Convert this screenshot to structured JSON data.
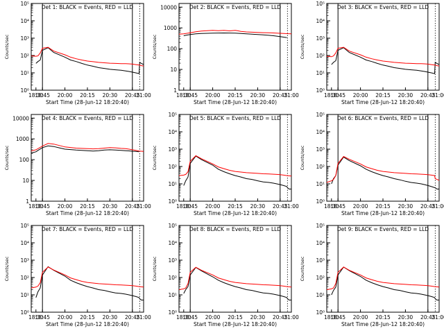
{
  "colors": {
    "events": "#000000",
    "lld": "#ff0000",
    "axis": "#000000"
  },
  "shared": {
    "xlabel": "Start Time (28-Jun-12 18:20:40)",
    "ylabel": "Counts/sec",
    "x_tick_labels": [
      "18:30",
      "18:45",
      "20:00",
      "20:15",
      "20:30",
      "20:45",
      "21:00"
    ]
  },
  "chart_data": [
    {
      "type": "line",
      "title": "Det 1: BLACK = Events, RED = LLD",
      "panel": 1,
      "scale": "log",
      "ylim": [
        1,
        100000
      ],
      "y_tick_labels": [
        "10⁰",
        "10¹",
        "10²",
        "10³",
        "10⁴",
        "10⁵"
      ],
      "series": [
        {
          "color": "#000000",
          "x": [
            0.42,
            0.6,
            0.8,
            1.0,
            1.5,
            2.0,
            3.0,
            3.5,
            4.0,
            4.5,
            5.0,
            5.5,
            6.0,
            6.5,
            7.0,
            7.5,
            8.0,
            8.4,
            8.7,
            9.0,
            9.3,
            9.6,
            9.65,
            9.8,
            10.0
          ],
          "y": [
            35,
            45,
            55,
            200,
            280,
            150,
            80,
            55,
            45,
            35,
            28,
            24,
            20,
            18,
            16,
            15,
            14,
            13,
            12,
            11,
            10,
            9,
            40,
            35,
            30
          ]
        },
        {
          "color": "#ff0000",
          "x": [
            0,
            0.42,
            0.6,
            0.8,
            1.0,
            1.5,
            2.0,
            3.0,
            3.5,
            4.0,
            4.5,
            5.0,
            5.5,
            6.0,
            6.5,
            7.0,
            7.5,
            8.0,
            8.4,
            8.7,
            9.0,
            9.3,
            9.6,
            9.65,
            9.8,
            10.0
          ],
          "y": [
            95,
            90,
            95,
            140,
            260,
            300,
            180,
            110,
            80,
            65,
            55,
            48,
            44,
            40,
            38,
            36,
            35,
            34,
            34,
            33,
            32,
            30,
            28,
            28,
            26,
            25
          ]
        }
      ]
    },
    {
      "type": "line",
      "title": "Det 2: BLACK = Events, RED = LLD",
      "panel": 2,
      "scale": "decade",
      "ylim": [
        1,
        15000
      ],
      "y_tick_labels": [
        "1",
        "10",
        "100",
        "1000",
        "10000"
      ],
      "series": [
        {
          "color": "#000000",
          "x": [
            0.42,
            0.6,
            1.0,
            1.5,
            2.0,
            3.0,
            4.0,
            5.0,
            5.5,
            6.0,
            6.5,
            7.0,
            7.5,
            8.0,
            8.4,
            8.7,
            9.0,
            9.3,
            9.6
          ],
          "y": [
            420,
            440,
            480,
            520,
            540,
            560,
            570,
            560,
            540,
            520,
            500,
            480,
            460,
            440,
            420,
            400,
            380,
            360,
            340
          ]
        },
        {
          "color": "#ff0000",
          "x": [
            0,
            0.42,
            1.0,
            1.5,
            2.0,
            3.0,
            3.5,
            4.0,
            4.5,
            5.0,
            5.2,
            5.5,
            6.0,
            6.5,
            7.0,
            7.5,
            8.0,
            8.4,
            8.7,
            9.0,
            9.3,
            9.6,
            10.0
          ],
          "y": [
            500,
            520,
            580,
            650,
            700,
            760,
            730,
            760,
            720,
            760,
            730,
            680,
            640,
            620,
            600,
            590,
            580,
            570,
            560,
            550,
            540,
            530,
            520
          ]
        }
      ]
    },
    {
      "type": "line",
      "title": "Det 3: BLACK = Events, RED = LLD",
      "panel": 3,
      "scale": "log",
      "ylim": [
        1,
        100000
      ],
      "y_tick_labels": [
        "10⁰",
        "10¹",
        "10²",
        "10³",
        "10⁴",
        "10⁵"
      ],
      "series": [
        {
          "color": "#000000",
          "x": [
            0.42,
            0.6,
            0.8,
            1.0,
            1.5,
            2.0,
            3.0,
            3.5,
            4.0,
            4.5,
            5.0,
            5.5,
            6.0,
            6.5,
            7.0,
            7.5,
            8.0,
            8.4,
            8.7,
            9.0,
            9.3,
            9.6,
            9.65,
            9.8,
            10.0
          ],
          "y": [
            30,
            40,
            50,
            200,
            280,
            150,
            80,
            55,
            45,
            35,
            28,
            24,
            20,
            18,
            16,
            15,
            14,
            13,
            12,
            11,
            10,
            9,
            40,
            35,
            30
          ]
        },
        {
          "color": "#ff0000",
          "x": [
            0,
            0.42,
            0.6,
            0.8,
            1.0,
            1.5,
            2.0,
            3.0,
            3.5,
            4.0,
            4.5,
            5.0,
            5.5,
            6.0,
            6.5,
            7.0,
            7.5,
            8.0,
            8.4,
            8.7,
            9.0,
            9.3,
            9.6,
            9.65,
            9.8,
            10.0
          ],
          "y": [
            90,
            85,
            95,
            140,
            260,
            300,
            180,
            110,
            80,
            65,
            55,
            48,
            44,
            40,
            38,
            36,
            35,
            34,
            34,
            33,
            32,
            30,
            28,
            28,
            26,
            25
          ]
        }
      ]
    },
    {
      "type": "line",
      "title": "Det 4: BLACK = Events, RED = LLD",
      "panel": 4,
      "scale": "decade",
      "ylim": [
        1,
        15000
      ],
      "y_tick_labels": [
        "1",
        "10",
        "100",
        "1000",
        "10000"
      ],
      "series": [
        {
          "color": "#000000",
          "x": [
            0,
            0.42,
            0.6,
            1.0,
            1.5,
            2.0,
            2.5,
            3.0,
            4.0,
            5.0,
            5.5,
            6.0,
            6.5,
            7.0,
            7.5,
            8.0,
            8.4,
            8.7,
            9.0,
            9.3,
            9.6
          ],
          "y": [
            210,
            240,
            280,
            380,
            460,
            430,
            370,
            320,
            290,
            270,
            260,
            270,
            290,
            300,
            290,
            280,
            270,
            265,
            255,
            250,
            240
          ]
        },
        {
          "color": "#ff0000",
          "x": [
            0,
            0.42,
            1.0,
            1.5,
            2.0,
            2.5,
            3.0,
            4.0,
            5.0,
            5.5,
            6.0,
            6.5,
            7.0,
            7.5,
            8.0,
            8.4,
            8.7,
            9.0,
            9.3,
            9.6,
            10.0
          ],
          "y": [
            260,
            300,
            450,
            600,
            560,
            480,
            410,
            360,
            340,
            330,
            340,
            360,
            380,
            370,
            350,
            340,
            320,
            300,
            280,
            260,
            250
          ]
        }
      ]
    },
    {
      "type": "line",
      "title": "Det 5: BLACK = Events, RED = LLD",
      "panel": 5,
      "scale": "log",
      "ylim": [
        1,
        100000
      ],
      "y_tick_labels": [
        "10⁰",
        "10¹",
        "10²",
        "10³",
        "10⁴",
        "10⁵"
      ],
      "series": [
        {
          "color": "#000000",
          "x": [
            0.42,
            0.6,
            0.8,
            1.0,
            1.5,
            2.0,
            3.0,
            3.5,
            4.0,
            4.5,
            5.0,
            5.5,
            6.0,
            6.5,
            7.0,
            7.5,
            8.0,
            8.4,
            8.7,
            9.0,
            9.3,
            9.6,
            9.65,
            9.8,
            10.0
          ],
          "y": [
            8,
            15,
            25,
            150,
            400,
            250,
            120,
            70,
            50,
            38,
            30,
            25,
            20,
            18,
            15,
            13,
            12,
            11,
            10,
            9,
            8,
            7,
            6,
            5,
            5
          ]
        },
        {
          "color": "#ff0000",
          "x": [
            0,
            0.42,
            0.6,
            0.8,
            1.0,
            1.5,
            2.0,
            3.0,
            3.5,
            4.0,
            4.5,
            5.0,
            5.5,
            6.0,
            6.5,
            7.0,
            7.5,
            8.0,
            8.4,
            8.7,
            9.0,
            9.3,
            9.6,
            10.0
          ],
          "y": [
            30,
            32,
            35,
            50,
            200,
            420,
            280,
            140,
            95,
            75,
            60,
            52,
            48,
            44,
            42,
            40,
            38,
            37,
            36,
            35,
            34,
            32,
            30,
            28
          ]
        }
      ]
    },
    {
      "type": "line",
      "title": "Det 6: BLACK = Events, RED = LLD",
      "panel": 6,
      "scale": "log",
      "ylim": [
        1,
        100000
      ],
      "y_tick_labels": [
        "10⁰",
        "10¹",
        "10²",
        "10³",
        "10⁴",
        "10⁵"
      ],
      "series": [
        {
          "color": "#000000",
          "x": [
            0.42,
            0.6,
            0.8,
            1.0,
            1.5,
            2.0,
            3.0,
            3.5,
            4.0,
            4.5,
            5.0,
            5.5,
            6.0,
            6.5,
            7.0,
            7.5,
            8.0,
            8.4,
            8.7,
            9.0,
            9.3,
            9.6,
            9.65,
            9.8,
            10.0
          ],
          "y": [
            10,
            20,
            30,
            120,
            350,
            220,
            110,
            70,
            50,
            38,
            30,
            25,
            20,
            17,
            14,
            12,
            11,
            10,
            9,
            8,
            7,
            6,
            6,
            5,
            5
          ]
        },
        {
          "color": "#ff0000",
          "x": [
            0,
            0.42,
            0.6,
            0.8,
            1.0,
            1.5,
            2.0,
            3.0,
            3.5,
            4.0,
            4.5,
            5.0,
            5.5,
            6.0,
            6.5,
            7.0,
            7.5,
            8.0,
            8.4,
            8.7,
            9.0,
            9.3,
            9.6,
            9.65,
            9.8,
            10.0
          ],
          "y": [
            12,
            15,
            18,
            30,
            150,
            380,
            260,
            140,
            95,
            75,
            60,
            52,
            48,
            44,
            42,
            40,
            38,
            37,
            36,
            35,
            34,
            32,
            30,
            20,
            18,
            16
          ]
        }
      ]
    },
    {
      "type": "line",
      "title": "Det 7: BLACK = Events, RED = LLD",
      "panel": 7,
      "scale": "log",
      "ylim": [
        1,
        100000
      ],
      "y_tick_labels": [
        "10⁰",
        "10¹",
        "10²",
        "10³",
        "10⁴",
        "10⁵"
      ],
      "series": [
        {
          "color": "#000000",
          "x": [
            0.42,
            0.6,
            0.8,
            1.0,
            1.5,
            2.0,
            3.0,
            3.5,
            4.0,
            4.5,
            5.0,
            5.5,
            6.0,
            6.5,
            7.0,
            7.5,
            8.0,
            8.4,
            8.7,
            9.0,
            9.3,
            9.6,
            9.65,
            9.8,
            10.0
          ],
          "y": [
            7,
            15,
            25,
            140,
            420,
            260,
            120,
            70,
            50,
            38,
            30,
            25,
            20,
            18,
            15,
            13,
            12,
            11,
            10,
            9,
            8,
            7,
            6,
            5,
            5
          ]
        },
        {
          "color": "#ff0000",
          "x": [
            0,
            0.42,
            0.6,
            0.8,
            1.0,
            1.5,
            2.0,
            3.0,
            3.5,
            4.0,
            4.5,
            5.0,
            5.5,
            6.0,
            6.5,
            7.0,
            7.5,
            8.0,
            8.4,
            8.7,
            9.0,
            9.3,
            9.6,
            10.0
          ],
          "y": [
            25,
            28,
            32,
            50,
            200,
            400,
            270,
            140,
            95,
            75,
            60,
            52,
            48,
            44,
            42,
            40,
            38,
            37,
            36,
            35,
            34,
            32,
            30,
            28
          ]
        }
      ]
    },
    {
      "type": "line",
      "title": "Det 8: BLACK = Events, RED = LLD",
      "panel": 8,
      "scale": "log",
      "ylim": [
        1,
        100000
      ],
      "y_tick_labels": [
        "10⁰",
        "10¹",
        "10²",
        "10³",
        "10⁴",
        "10⁵"
      ],
      "series": [
        {
          "color": "#000000",
          "x": [
            0.42,
            0.6,
            0.8,
            1.0,
            1.5,
            2.0,
            3.0,
            3.5,
            4.0,
            4.5,
            5.0,
            5.5,
            6.0,
            6.5,
            7.0,
            7.5,
            8.0,
            8.4,
            8.7,
            9.0,
            9.3,
            9.6,
            9.65,
            9.8,
            10.0
          ],
          "y": [
            12,
            20,
            30,
            140,
            380,
            240,
            110,
            70,
            50,
            38,
            30,
            25,
            20,
            18,
            15,
            13,
            12,
            11,
            10,
            9,
            8,
            7,
            6,
            5,
            5
          ]
        },
        {
          "color": "#ff0000",
          "x": [
            0,
            0.42,
            0.6,
            0.8,
            1.0,
            1.5,
            2.0,
            3.0,
            3.5,
            4.0,
            4.5,
            5.0,
            5.5,
            6.0,
            6.5,
            7.0,
            7.5,
            8.0,
            8.4,
            8.7,
            9.0,
            9.3,
            9.6,
            10.0
          ],
          "y": [
            20,
            22,
            25,
            45,
            200,
            390,
            260,
            140,
            95,
            75,
            60,
            52,
            48,
            44,
            42,
            40,
            38,
            37,
            36,
            35,
            34,
            32,
            30,
            28
          ]
        }
      ]
    },
    {
      "type": "line",
      "title": "Det 9: BLACK = Events, RED = LLD",
      "panel": 9,
      "scale": "log",
      "ylim": [
        1,
        100000
      ],
      "y_tick_labels": [
        "10⁰",
        "10¹",
        "10²",
        "10³",
        "10⁴",
        "10⁵"
      ],
      "series": [
        {
          "color": "#000000",
          "x": [
            0.42,
            0.6,
            0.8,
            1.0,
            1.5,
            2.0,
            3.0,
            3.5,
            4.0,
            4.5,
            5.0,
            5.5,
            6.0,
            6.5,
            7.0,
            7.5,
            8.0,
            8.4,
            8.7,
            9.0,
            9.3,
            9.6,
            9.65,
            9.8,
            10.0
          ],
          "y": [
            10,
            18,
            28,
            140,
            400,
            250,
            115,
            70,
            50,
            38,
            30,
            25,
            20,
            18,
            15,
            13,
            12,
            11,
            10,
            9,
            8,
            7,
            6,
            5,
            5
          ]
        },
        {
          "color": "#ff0000",
          "x": [
            0,
            0.42,
            0.6,
            0.8,
            1.0,
            1.5,
            2.0,
            3.0,
            3.5,
            4.0,
            4.5,
            5.0,
            5.5,
            6.0,
            6.5,
            7.0,
            7.5,
            8.0,
            8.4,
            8.7,
            9.0,
            9.3,
            9.6,
            10.0
          ],
          "y": [
            20,
            22,
            25,
            45,
            200,
            400,
            260,
            140,
            95,
            75,
            60,
            52,
            48,
            44,
            42,
            40,
            38,
            37,
            36,
            35,
            34,
            32,
            30,
            28
          ]
        }
      ]
    }
  ]
}
